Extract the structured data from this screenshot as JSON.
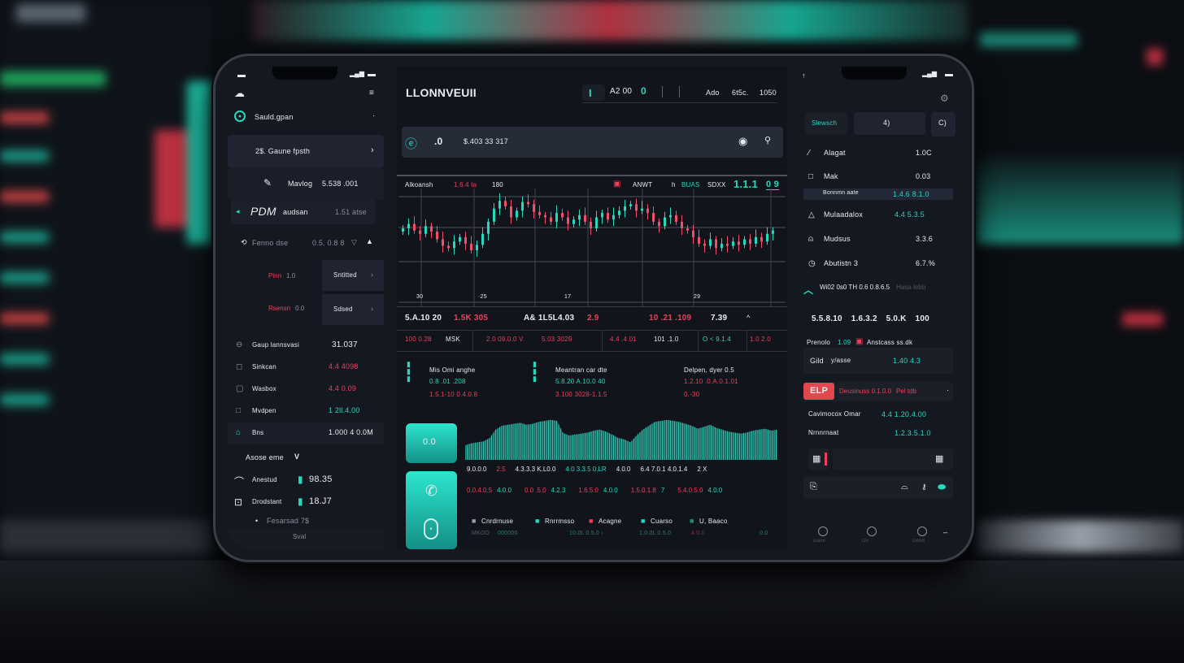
{
  "colors": {
    "accent": "#27d8bd",
    "negative": "#ef3f5b",
    "background": "#141821"
  },
  "left": {
    "header": {
      "title": "Sauld.gpan"
    },
    "card1": {
      "label": "2$. Gaune fpsth"
    },
    "card2": {
      "label": "Mavlog",
      "value": "5.538 .001"
    },
    "card3": {
      "big": "PDM",
      "label": "audsan",
      "value": "1.51 atse"
    },
    "filter": {
      "label": "Fenno dse",
      "value": "0.5. 0.8 8"
    },
    "order_rows": [
      {
        "label": "Pinn",
        "value": "1.0",
        "button": "Sntitted"
      },
      {
        "label": "Rsensn",
        "value": "0.0",
        "button": "Sdsed"
      }
    ],
    "list": [
      {
        "label": "Gaup lannsvasi",
        "value": "31.037",
        "tone": "w",
        "icon": "lock-icon"
      },
      {
        "label": "Sinkcan",
        "value": "4.4 4098",
        "tone": "r",
        "icon": "chat-icon"
      },
      {
        "label": "Wasbox",
        "value": "4.4 0.09",
        "tone": "r",
        "icon": "document-icon"
      },
      {
        "label": "Mvdpen",
        "value": "1 2ll.4.00",
        "tone": "g",
        "icon": "square-icon"
      },
      {
        "label": "Bns",
        "value": "1.000 4 0.0M",
        "tone": "w",
        "icon": "home-icon"
      }
    ],
    "section": {
      "label": "Asose eme",
      "mark": "V"
    },
    "wallets": [
      {
        "label": "Anestud",
        "value": "98.35"
      },
      {
        "label": "Drodstant",
        "value": "18.J7"
      }
    ],
    "note": "Fesarsad 7$",
    "footer": "Sval"
  },
  "center": {
    "title": "LLONNVEUII",
    "ticker": {
      "mark": "I",
      "value": "A2 00",
      "flag": "0",
      "meta1": "Ado",
      "meta2": "6t5c.",
      "meta3": "1050"
    },
    "search": {
      "prefix": ".0",
      "value": "$.403 33 317"
    },
    "chart_header": {
      "symbol": "Alkoansh",
      "change": "1.6.4 ta",
      "interval": "180",
      "mode": "ANWT",
      "h": "h",
      "buy": "BUAS",
      "sell": "SDXX",
      "price": "1.1.1",
      "price2": "0 9"
    },
    "chart_data": {
      "type": "candlestick",
      "x_tick_labels": [
        "30",
        "·25",
        "17",
        "29"
      ],
      "closes": [
        60,
        64,
        58,
        55,
        62,
        57,
        50,
        44,
        42,
        48,
        52,
        46,
        40,
        45,
        55,
        66,
        78,
        85,
        80,
        70,
        76,
        84,
        82,
        75,
        72,
        70,
        66,
        74,
        70,
        64,
        68,
        72,
        66,
        60,
        70,
        74,
        68,
        72,
        76,
        80,
        82,
        76,
        78,
        74,
        66,
        62,
        70,
        72,
        66,
        60,
        58,
        52,
        46,
        44,
        50,
        42,
        46,
        44,
        48,
        45,
        50,
        46,
        52,
        48,
        55,
        58
      ],
      "grid": true
    },
    "stats1": [
      {
        "v": "5.A.10 20",
        "tone": "w"
      },
      {
        "v": "1.5K 305",
        "tone": "r"
      },
      {
        "v": "A& 1L5L4.03",
        "tone": "w"
      },
      {
        "v": "2.9",
        "tone": "r"
      },
      {
        "v": "10 .21 .109",
        "tone": "r"
      },
      {
        "v": "7.39",
        "tone": "w"
      }
    ],
    "stats2": [
      {
        "v": "100 0.28",
        "tone": "r"
      },
      {
        "v": "MSK",
        "tone": "w"
      },
      {
        "v": "2.0 09.0.0 V",
        "tone": "r"
      },
      {
        "v": "5.03 3029",
        "tone": "r"
      },
      {
        "v": "4.4 .4.01",
        "tone": "r"
      },
      {
        "v": "101 .1.0",
        "tone": "w"
      },
      {
        "v": "O < 9.1.4",
        "tone": "g"
      },
      {
        "v": "1.0 2.0",
        "tone": "r"
      }
    ],
    "columns": [
      {
        "title": "Mis Omi anghe",
        "line1": "0.8 .01 .208",
        "line1_tone": "g",
        "line2": "1.5.1-10 0.4.0.8",
        "line2_tone": "r"
      },
      {
        "title": "Meantran car dte",
        "line1": "5.8.20 A.10.0 40",
        "line1_tone": "g",
        "line2": "3.100 3028-1.1.5",
        "line2_tone": "r"
      },
      {
        "title": "Delpen, dyer 0.5",
        "line1": "1.2.10 .0.A.0.1.01",
        "line1_tone": "r",
        "line2": "0.-30",
        "line2_tone": "r"
      }
    ],
    "action_button": "0.0",
    "volume_data": [
      30,
      34,
      36,
      38,
      45,
      62,
      70,
      72,
      74,
      76,
      72,
      74,
      78,
      80,
      82,
      80,
      55,
      50,
      52,
      54,
      56,
      60,
      62,
      58,
      52,
      45,
      42,
      36,
      50,
      62,
      70,
      78,
      80,
      82,
      80,
      78,
      74,
      70,
      64,
      68,
      72,
      66,
      62,
      58,
      56,
      54,
      56,
      60,
      62,
      64,
      60,
      62
    ],
    "row1": [
      {
        "v": "9.0.0.0",
        "tone": "w"
      },
      {
        "v": "2.5",
        "tone": "r"
      },
      {
        "v": "4.3.3.3 K.L0.0",
        "tone": "w"
      },
      {
        "v": "4.0 3.3.5 0.LR",
        "tone": "g"
      },
      {
        "v": "4.0.0",
        "tone": "w"
      },
      {
        "v": "6.4 7.0.1 4.0.1.4",
        "tone": "w"
      },
      {
        "v": "2 X",
        "tone": "w"
      }
    ],
    "row2": [
      {
        "a": "0.0.4.0.5",
        "b": "4.0.0"
      },
      {
        "a": "0.0 .5.0",
        "b": "4.2.3"
      },
      {
        "a": "1.6.5.0",
        "b": "4.0.0"
      },
      {
        "a": "1.5.0.1.8",
        "b": "7"
      },
      {
        "a": "5.4.0.5.0",
        "b": "4.0.0"
      }
    ],
    "legend": [
      {
        "label": "Cnrdrnuse",
        "color": "#9aa0aa"
      },
      {
        "label": "Rnrrmsso",
        "color": "#27d8bd"
      },
      {
        "label": "Acagne",
        "color": "#ef3f5b"
      },
      {
        "label": "Cuarso",
        "color": "#27d8bd"
      },
      {
        "label": "U, Baaco",
        "color": "#1d8f7e"
      }
    ],
    "footer": [
      "MKOO",
      "000000",
      "10.0L 0.5.0 ›",
      "1.0.0L 0.5.0",
      "4.0.0",
      "0.0"
    ]
  },
  "right": {
    "tabs": [
      {
        "label": "Slewsch"
      },
      {
        "label": "4)"
      },
      {
        "label": "C)"
      }
    ],
    "list": [
      {
        "label": "Alagat",
        "value": "1.0C",
        "tone": "w",
        "icon": "trend-icon"
      },
      {
        "label": "Mak",
        "value": "0.03",
        "tone": "w",
        "icon": "square-icon"
      },
      {
        "label": "Bonnmn aate",
        "value": "1.4.6 8.1.0",
        "tone": "g",
        "icon": ""
      },
      {
        "label": "Mulaadalox",
        "value": "4.4 5.3.5",
        "tone": "g",
        "icon": "triangle-icon"
      },
      {
        "label": "Mudsus",
        "value": "3.3.6",
        "tone": "w",
        "icon": "person-icon"
      },
      {
        "label": "Abutistn 3",
        "value": "6.7.%",
        "tone": "w",
        "icon": "timer-icon"
      }
    ],
    "wave_row": {
      "label": "Wi02 0s0 TH 0.6 0.8.6.5",
      "aside": "Hasa lebb"
    },
    "summary": "5.5.8.10   1.6.3.2  5.0.K 100",
    "info": {
      "label": "Prenolo",
      "value": "1.09",
      "tag": "Anstcass ss.dk"
    },
    "field": {
      "label": "Gild",
      "sub": "y/asse",
      "value": "1.40 4.3"
    },
    "alert": {
      "button": "ELP",
      "text": "Deusinuss 0.1.0.0",
      "tag": "Pel tdb"
    },
    "balances": [
      {
        "label": "Cavimocox Omar",
        "value": "4.4 1.20.4.00"
      },
      {
        "label": "Nrnnrnaat",
        "value": "1.2.3.5.1.0"
      }
    ],
    "nav": [
      "Dane",
      "Ov",
      "Gelid"
    ]
  }
}
